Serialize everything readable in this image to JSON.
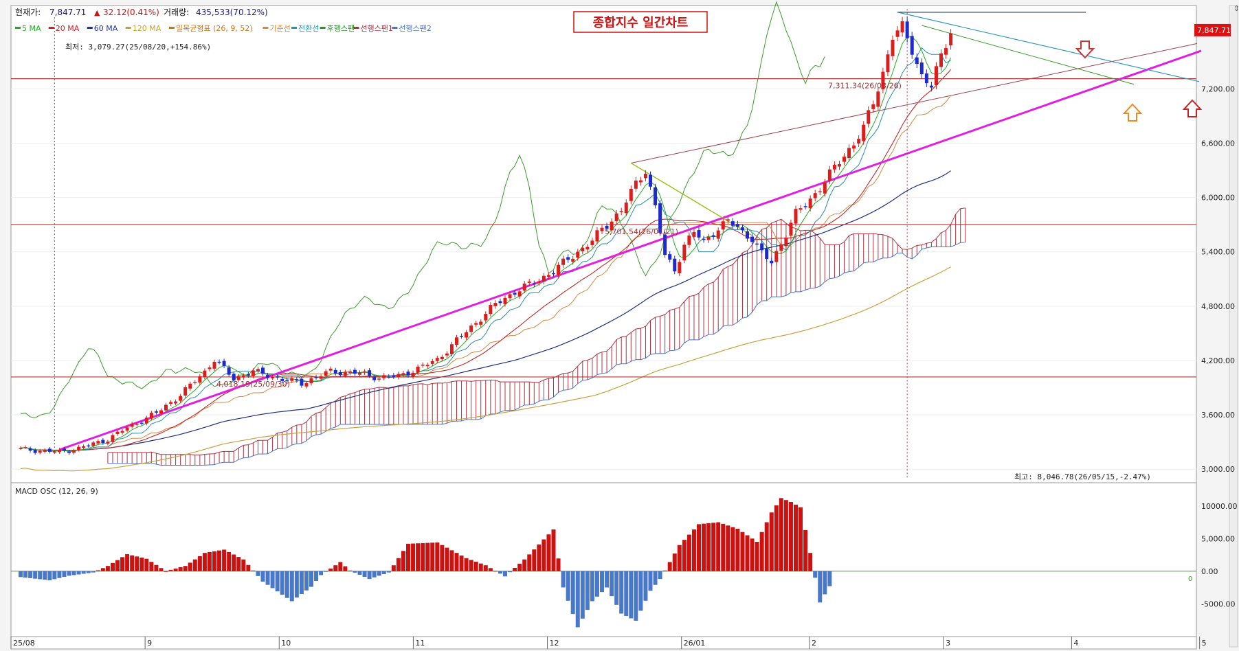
{
  "header": {
    "price_label": "현재가:",
    "price_value": "7,847.71",
    "change_value": "32.12(0.41%)",
    "volume_label": "거래량:",
    "volume_value": "435,533(70.12%)",
    "chart_title": "종합지수 일간차트",
    "scroll_indicator": "⇕"
  },
  "legend": [
    {
      "label": "5 MA",
      "color": "#22aa22"
    },
    {
      "label": "20 MA",
      "color": "#cc2222"
    },
    {
      "label": "60 MA",
      "color": "#223399"
    },
    {
      "label": "120 MA",
      "color": "#c8a030"
    },
    {
      "label": "일목균형표 (26, 9, 52)",
      "color": "#cc7711"
    },
    {
      "label": "기준선",
      "color": "#dd8833"
    },
    {
      "label": "전환선",
      "color": "#2299aa"
    },
    {
      "label": "후행스팬",
      "color": "#229922"
    },
    {
      "label": "선행스팬1",
      "color": "#aa3344"
    },
    {
      "label": "선행스팬2",
      "color": "#4477cc"
    }
  ],
  "colors": {
    "up": "#dd1c1c",
    "down": "#1c2ad0",
    "trendline": "#e020e0",
    "support": "#b03838",
    "cloud": "#b03040",
    "macd_pos": "#cc1111",
    "macd_neg": "#4a78c8",
    "lagging": "#3a9a2a",
    "ma20": "#c02828",
    "ma60": "#1f2f80",
    "ma120": "#c8a040",
    "kijun": "#d08a40",
    "tenkan": "#2a8aa8"
  },
  "chart_data": {
    "type": "candlestick",
    "title": "종합지수 일간차트",
    "y_range": [
      2850,
      8120
    ],
    "y_ticks": [
      "7,200.00",
      "6,600.00",
      "6,000.00",
      "5,400.00",
      "4,800.00",
      "4,200.00",
      "3,600.00",
      "3,000.00"
    ],
    "y_tick_values": [
      7200,
      6600,
      6000,
      5400,
      4800,
      4200,
      3600,
      3000
    ],
    "x_tick_labels": [
      "25/08",
      "9",
      "10",
      "11",
      "12",
      "26/01",
      "2",
      "3",
      "4",
      "5"
    ],
    "current_price_label": "7,847.71",
    "current_price": 7847.71,
    "annotations": {
      "low": "최저: 3,079.27(25/08/20,+154.86%)",
      "high": "최고: 8,046.78(26/05/15,-2.47%)",
      "level_4018": "4,018.19(25/09/30)",
      "level_5701": "5,701.54(26/01/21)",
      "level_7311": "7,311.34(26/03/26)"
    },
    "support_levels": [
      7311.34,
      5701.54,
      4018.19
    ],
    "anchor_series": [
      [
        0,
        3220
      ],
      [
        8,
        3190
      ],
      [
        12,
        3230
      ],
      [
        18,
        3330
      ],
      [
        22,
        3460
      ],
      [
        28,
        3620
      ],
      [
        33,
        3820
      ],
      [
        38,
        4080
      ],
      [
        40,
        4210
      ],
      [
        44,
        4000
      ],
      [
        48,
        4080
      ],
      [
        54,
        3990
      ],
      [
        58,
        3950
      ],
      [
        64,
        4080
      ],
      [
        70,
        4060
      ],
      [
        74,
        4010
      ],
      [
        78,
        4030
      ],
      [
        82,
        4110
      ],
      [
        86,
        4210
      ],
      [
        90,
        4420
      ],
      [
        94,
        4620
      ],
      [
        98,
        4820
      ],
      [
        102,
        4960
      ],
      [
        106,
        5060
      ],
      [
        110,
        5190
      ],
      [
        114,
        5360
      ],
      [
        118,
        5520
      ],
      [
        120,
        5650
      ],
      [
        124,
        5860
      ],
      [
        127,
        6150
      ],
      [
        129,
        6310
      ],
      [
        131,
        5900
      ],
      [
        133,
        5350
      ],
      [
        135,
        5200
      ],
      [
        137,
        5480
      ],
      [
        139,
        5620
      ],
      [
        141,
        5500
      ],
      [
        143,
        5620
      ],
      [
        146,
        5740
      ],
      [
        149,
        5620
      ],
      [
        151,
        5550
      ],
      [
        153,
        5380
      ],
      [
        155,
        5280
      ],
      [
        157,
        5500
      ],
      [
        160,
        5820
      ],
      [
        163,
        5980
      ],
      [
        166,
        6180
      ],
      [
        169,
        6400
      ],
      [
        172,
        6600
      ],
      [
        174,
        6760
      ],
      [
        176,
        7050
      ],
      [
        178,
        7380
      ],
      [
        180,
        7780
      ],
      [
        182,
        7870
      ],
      [
        184,
        7640
      ],
      [
        186,
        7340
      ],
      [
        188,
        7220
      ],
      [
        190,
        7560
      ],
      [
        192,
        7860
      ]
    ],
    "macd_osc": {
      "label": "MACD OSC (12, 26, 9)",
      "y_ticks": [
        "10000.00",
        "5,000.00",
        "0.00",
        "-5000.00"
      ],
      "y_tick_values": [
        10000,
        5000,
        0,
        -5000
      ],
      "zero_label": "0",
      "anchors": [
        [
          0,
          -900
        ],
        [
          6,
          -1400
        ],
        [
          10,
          -700
        ],
        [
          15,
          -200
        ],
        [
          18,
          800
        ],
        [
          22,
          2600
        ],
        [
          26,
          1900
        ],
        [
          30,
          0
        ],
        [
          34,
          800
        ],
        [
          38,
          2800
        ],
        [
          42,
          3300
        ],
        [
          46,
          1800
        ],
        [
          50,
          -1600
        ],
        [
          56,
          -4600
        ],
        [
          60,
          -2400
        ],
        [
          62,
          -600
        ],
        [
          66,
          1400
        ],
        [
          68,
          100
        ],
        [
          72,
          -1200
        ],
        [
          76,
          -200
        ],
        [
          80,
          4200
        ],
        [
          86,
          4400
        ],
        [
          92,
          2000
        ],
        [
          96,
          900
        ],
        [
          100,
          -800
        ],
        [
          104,
          1800
        ],
        [
          110,
          6400
        ],
        [
          112,
          -2500
        ],
        [
          115,
          -8600
        ],
        [
          118,
          -4600
        ],
        [
          121,
          -2500
        ],
        [
          124,
          -6500
        ],
        [
          127,
          -7600
        ],
        [
          130,
          -3000
        ],
        [
          132,
          -1200
        ],
        [
          136,
          4000
        ],
        [
          140,
          7200
        ],
        [
          144,
          7500
        ],
        [
          148,
          6500
        ],
        [
          152,
          4500
        ],
        [
          155,
          9000
        ],
        [
          157,
          11200
        ],
        [
          159,
          10600
        ],
        [
          161,
          9800
        ],
        [
          163,
          2800
        ],
        [
          165,
          -4800
        ],
        [
          167,
          -2300
        ]
      ]
    }
  }
}
